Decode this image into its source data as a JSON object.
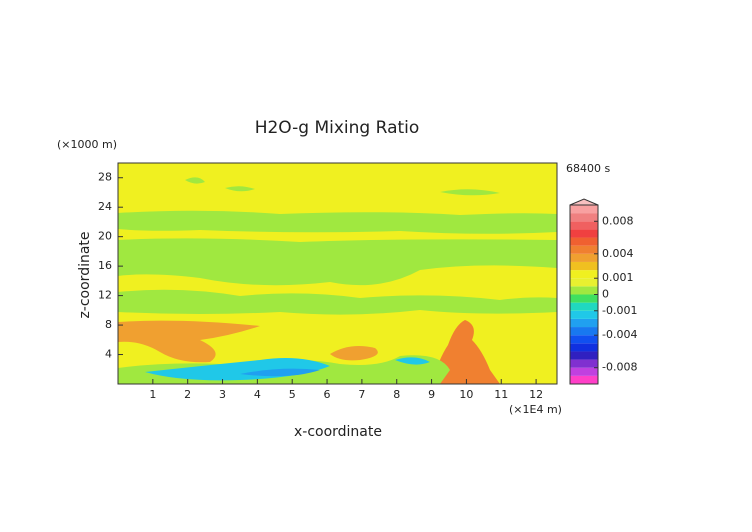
{
  "chart_data": {
    "type": "contour",
    "title": "H2O-g Mixing Ratio",
    "time_label": "68400 s",
    "x_label": "x-coordinate",
    "y_label": "z-coordinate",
    "x_unit": "(×1E4 m)",
    "y_unit": "(×1000 m)",
    "xlim": [
      0,
      12.6
    ],
    "ylim": [
      0,
      30
    ],
    "xticks": [
      1,
      2,
      3,
      4,
      5,
      6,
      7,
      8,
      9,
      10,
      11,
      12
    ],
    "yticks": [
      4,
      8,
      12,
      16,
      20,
      24,
      28
    ],
    "levels": [
      -0.01,
      -0.009,
      -0.008,
      -0.007,
      -0.006,
      -0.005,
      -0.004,
      -0.003,
      -0.002,
      -0.001,
      -0.0005,
      0,
      0.0005,
      0.001,
      0.002,
      0.003,
      0.004,
      0.005,
      0.006,
      0.007,
      0.008,
      0.009,
      0.01
    ],
    "colors": [
      "#ff3fc8",
      "#c040e0",
      "#8030d0",
      "#3020c0",
      "#1030e0",
      "#1050f0",
      "#1878f0",
      "#20a0f0",
      "#20c8e8",
      "#20d8c0",
      "#40e060",
      "#a0e840",
      "#e8f030",
      "#f0f020",
      "#f0c020",
      "#f0a030",
      "#f08030",
      "#f06030",
      "#f04040",
      "#f06060",
      "#f08080",
      "#f8a0a0"
    ],
    "colorbar_ticks": [
      -0.008,
      -0.004,
      -0.001,
      0,
      0.001,
      0.004,
      0.008
    ]
  }
}
